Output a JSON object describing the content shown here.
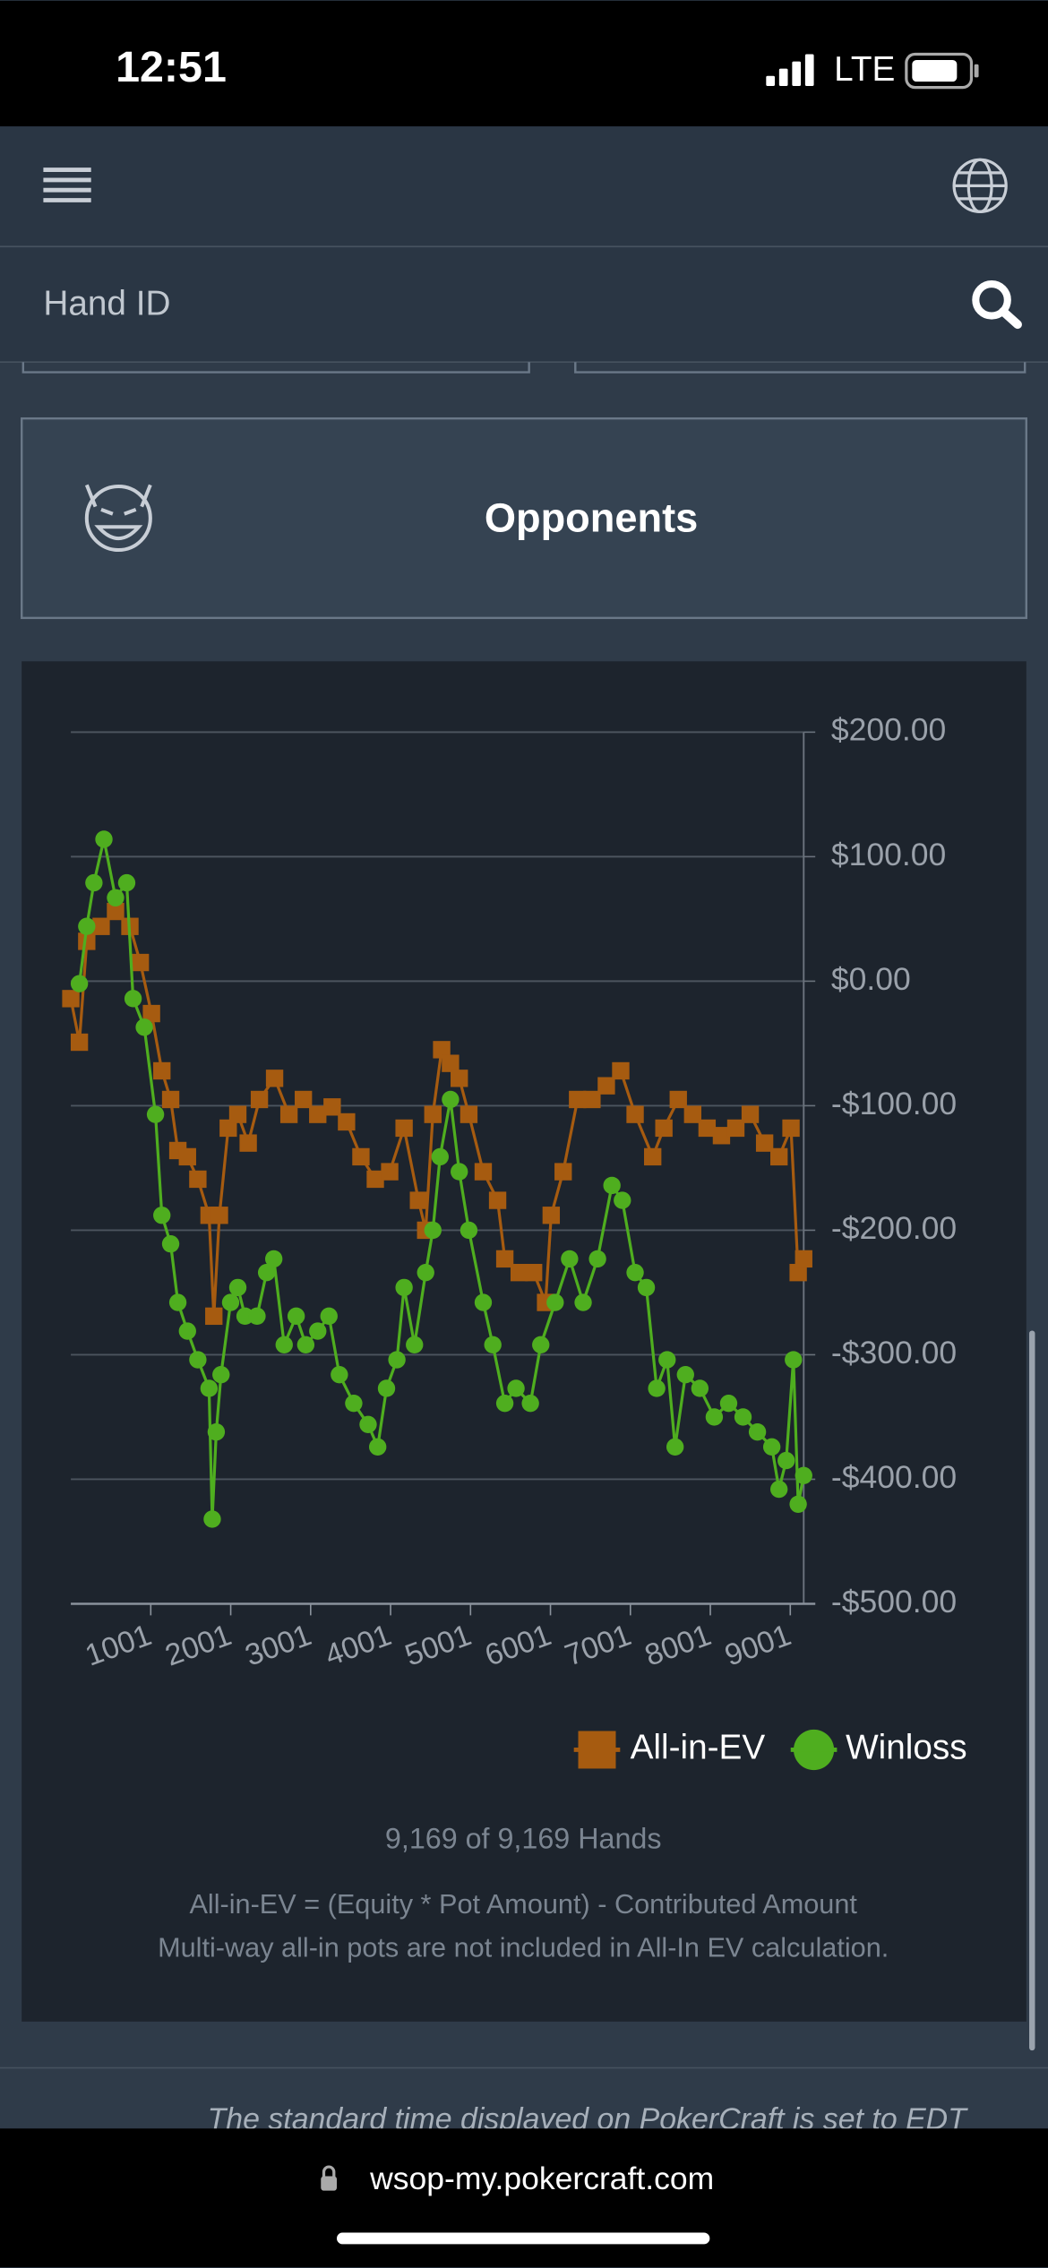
{
  "status_bar": {
    "time": "12:51",
    "network": "LTE"
  },
  "search": {
    "placeholder": "Hand ID"
  },
  "opponents": {
    "label": "Opponents"
  },
  "chart_data": {
    "type": "line",
    "xlim": [
      1,
      9169
    ],
    "xticks": [
      1001,
      2001,
      3001,
      4001,
      5001,
      6001,
      7001,
      8001,
      9001
    ],
    "ylim": [
      -500,
      200
    ],
    "yticks": [
      {
        "value": 200,
        "label": "$200.00"
      },
      {
        "value": 100,
        "label": "$100.00"
      },
      {
        "value": 0,
        "label": "$0.00"
      },
      {
        "value": -100,
        "label": "-$100.00"
      },
      {
        "value": -200,
        "label": "-$200.00"
      },
      {
        "value": -300,
        "label": "-$300.00"
      },
      {
        "value": -400,
        "label": "-$400.00"
      },
      {
        "value": -500,
        "label": "-$500.00"
      }
    ],
    "grid": true,
    "legend": "bottom-right",
    "series": [
      {
        "name": "All-in-EV",
        "color": "#a65b10",
        "marker": "square",
        "x": [
          1,
          108,
          200,
          380,
          560,
          740,
          870,
          1010,
          1140,
          1250,
          1340,
          1460,
          1590,
          1730,
          1790,
          1860,
          1970,
          2090,
          2220,
          2360,
          2550,
          2730,
          2910,
          3090,
          3270,
          3450,
          3630,
          3810,
          3990,
          4170,
          4350,
          4440,
          4530,
          4640,
          4750,
          4860,
          4980,
          5160,
          5340,
          5430,
          5610,
          5790,
          5940,
          6010,
          6160,
          6340,
          6520,
          6700,
          6880,
          7060,
          7280,
          7420,
          7600,
          7780,
          7960,
          8140,
          8320,
          8500,
          8680,
          8860,
          9010,
          9100,
          9169
        ],
        "values": [
          -14,
          -49,
          32,
          44,
          56,
          44,
          15,
          -26,
          -72,
          -95,
          -136,
          -141,
          -159,
          -188,
          -269,
          -188,
          -118,
          -107,
          -130,
          -95,
          -78,
          -107,
          -95,
          -107,
          -101,
          -113,
          -141,
          -159,
          -153,
          -118,
          -176,
          -200,
          -107,
          -55,
          -66,
          -78,
          -107,
          -153,
          -176,
          -223,
          -234,
          -234,
          -258,
          -188,
          -153,
          -95,
          -95,
          -84,
          -72,
          -107,
          -141,
          -118,
          -95,
          -107,
          -118,
          -124,
          -118,
          -107,
          -130,
          -141,
          -118,
          -234,
          -223
        ]
      },
      {
        "name": "Winloss",
        "color": "#4fae1f",
        "marker": "circle",
        "x": [
          108,
          200,
          290,
          415,
          560,
          700,
          780,
          920,
          1060,
          1140,
          1250,
          1340,
          1460,
          1590,
          1730,
          1770,
          1820,
          1880,
          2000,
          2090,
          2180,
          2330,
          2450,
          2540,
          2670,
          2820,
          2940,
          3090,
          3230,
          3360,
          3540,
          3720,
          3840,
          3950,
          4080,
          4170,
          4300,
          4440,
          4530,
          4620,
          4750,
          4860,
          4980,
          5160,
          5280,
          5430,
          5570,
          5750,
          5880,
          6060,
          6240,
          6410,
          6590,
          6770,
          6900,
          7060,
          7200,
          7330,
          7460,
          7560,
          7690,
          7870,
          8050,
          8230,
          8410,
          8590,
          8770,
          8860,
          8950,
          9040,
          9100,
          9169
        ],
        "values": [
          -2,
          44,
          79,
          114,
          67,
          79,
          -14,
          -37,
          -107,
          -188,
          -211,
          -258,
          -281,
          -304,
          -327,
          -432,
          -362,
          -316,
          -258,
          -246,
          -269,
          -269,
          -234,
          -223,
          -292,
          -269,
          -292,
          -281,
          -269,
          -316,
          -339,
          -356,
          -374,
          -327,
          -304,
          -246,
          -292,
          -234,
          -200,
          -141,
          -95,
          -153,
          -200,
          -258,
          -292,
          -339,
          -327,
          -339,
          -292,
          -258,
          -223,
          -258,
          -223,
          -164,
          -176,
          -234,
          -246,
          -327,
          -304,
          -374,
          -316,
          -327,
          -350,
          -339,
          -350,
          -362,
          -374,
          -408,
          -385,
          -304,
          -420,
          -397
        ]
      }
    ],
    "hands_count": "9,169 of 9,169 Hands",
    "notes": [
      "All-in-EV = (Equity * Pot Amount) - Contributed Amount",
      "Multi-way all-in pots are not included in All-In EV calculation."
    ]
  },
  "footer": {
    "timezone_note": "The standard time displayed on PokerCraft is set to EDT"
  },
  "browser": {
    "url": "wsop-my.pokercraft.com"
  }
}
